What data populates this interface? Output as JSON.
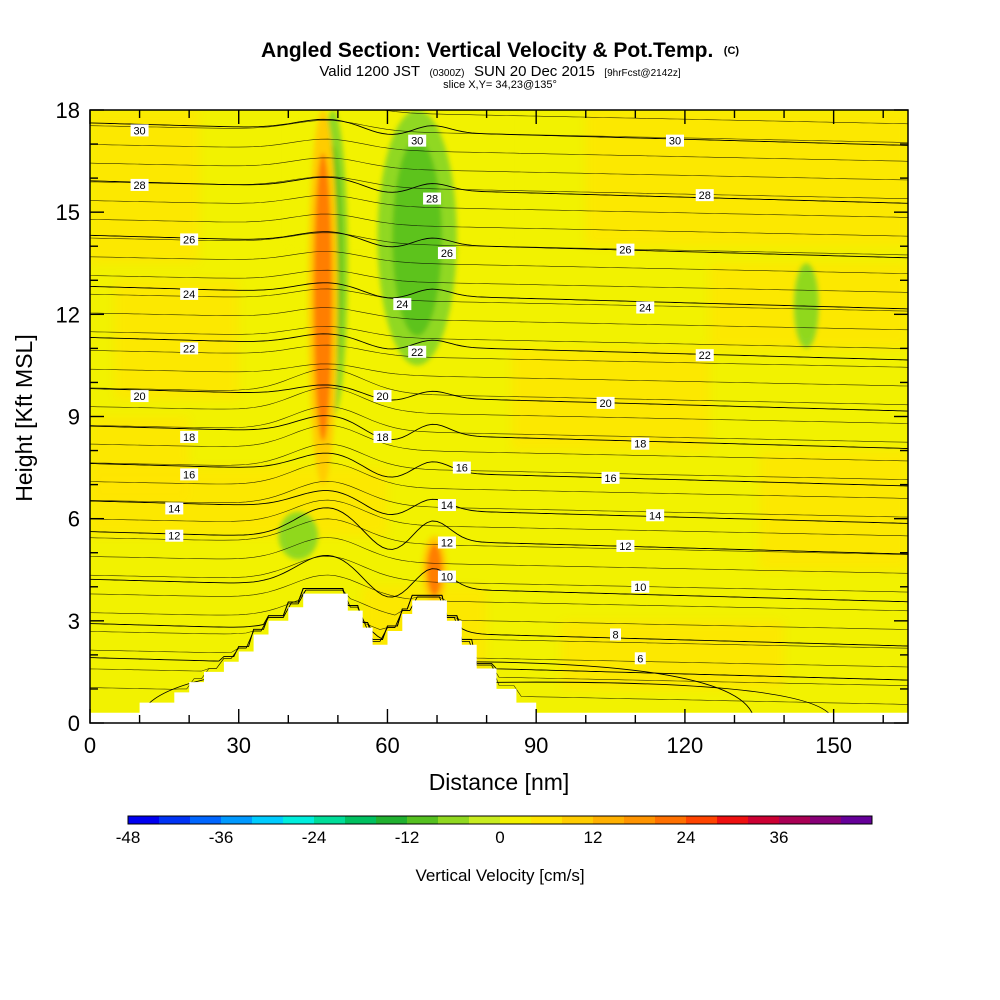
{
  "header": {
    "title": "Angled Section: Vertical Velocity & Pot.Temp.",
    "title_tag": "(C)",
    "valid_prefix": "Valid 1200 JST",
    "valid_utc": "(0300Z)",
    "valid_date": "SUN 20 Dec 2015",
    "forecast": "[9hrFcst@2142z]",
    "slice": "slice X,Y= 34,23@135°"
  },
  "colorbar": {
    "title": "Vertical Velocity [cm/s]",
    "tick_labels": [
      "-48",
      "-36",
      "-24",
      "-12",
      "0",
      "12",
      "24",
      "36"
    ],
    "tick_values": [
      -48,
      -36,
      -24,
      -12,
      0,
      12,
      24,
      36
    ],
    "bins": [
      -48,
      -44,
      -40,
      -36,
      -32,
      -28,
      -24,
      -20,
      -16,
      -12,
      -8,
      -4,
      0,
      4,
      8,
      12,
      16,
      20,
      24,
      28,
      32,
      36,
      40,
      44
    ],
    "colors": [
      "#0000f0",
      "#0033f5",
      "#0066ff",
      "#0099ff",
      "#00ccff",
      "#00eedd",
      "#00dd99",
      "#00c060",
      "#20b030",
      "#55c020",
      "#90d820",
      "#c8ec20",
      "#f2f200",
      "#ffe400",
      "#ffcc00",
      "#ffb000",
      "#ff9400",
      "#ff7000",
      "#ff4400",
      "#ee1010",
      "#cc0033",
      "#aa0055",
      "#880077",
      "#660099"
    ]
  },
  "chart_data": {
    "type": "heatmap",
    "title": "Angled Section: Vertical Velocity & Pot.Temp.",
    "xlabel": "Distance [nm]",
    "ylabel": "Height [Kft MSL]",
    "xlim": [
      0,
      165
    ],
    "ylim": [
      0,
      18
    ],
    "x_ticks": [
      0,
      30,
      60,
      90,
      120,
      150
    ],
    "y_ticks": [
      0,
      3,
      6,
      9,
      12,
      15,
      18
    ],
    "filled_field": "Vertical Velocity [cm/s]",
    "contour_field": "Potential Temperature (C)",
    "contour_levels": [
      6,
      8,
      10,
      12,
      14,
      16,
      18,
      20,
      22,
      24,
      26,
      28,
      30
    ],
    "contour_labels": [
      {
        "text": "30",
        "x": 10,
        "y": 17.4
      },
      {
        "text": "30",
        "x": 66,
        "y": 17.1
      },
      {
        "text": "30",
        "x": 118,
        "y": 17.1
      },
      {
        "text": "28",
        "x": 10,
        "y": 15.8
      },
      {
        "text": "28",
        "x": 69,
        "y": 15.4
      },
      {
        "text": "28",
        "x": 124,
        "y": 15.5
      },
      {
        "text": "26",
        "x": 20,
        "y": 14.2
      },
      {
        "text": "26",
        "x": 72,
        "y": 13.8
      },
      {
        "text": "26",
        "x": 108,
        "y": 13.9
      },
      {
        "text": "24",
        "x": 20,
        "y": 12.6
      },
      {
        "text": "24",
        "x": 63,
        "y": 12.3
      },
      {
        "text": "24",
        "x": 112,
        "y": 12.2
      },
      {
        "text": "22",
        "x": 20,
        "y": 11.0
      },
      {
        "text": "22",
        "x": 66,
        "y": 10.9
      },
      {
        "text": "22",
        "x": 124,
        "y": 10.8
      },
      {
        "text": "20",
        "x": 10,
        "y": 9.6
      },
      {
        "text": "20",
        "x": 59,
        "y": 9.6
      },
      {
        "text": "20",
        "x": 104,
        "y": 9.4
      },
      {
        "text": "18",
        "x": 20,
        "y": 8.4
      },
      {
        "text": "18",
        "x": 59,
        "y": 8.4
      },
      {
        "text": "18",
        "x": 111,
        "y": 8.2
      },
      {
        "text": "16",
        "x": 20,
        "y": 7.3
      },
      {
        "text": "16",
        "x": 75,
        "y": 7.5
      },
      {
        "text": "16",
        "x": 105,
        "y": 7.2
      },
      {
        "text": "14",
        "x": 17,
        "y": 6.3
      },
      {
        "text": "14",
        "x": 72,
        "y": 6.4
      },
      {
        "text": "14",
        "x": 114,
        "y": 6.1
      },
      {
        "text": "12",
        "x": 17,
        "y": 5.5
      },
      {
        "text": "12",
        "x": 72,
        "y": 5.3
      },
      {
        "text": "12",
        "x": 108,
        "y": 5.2
      },
      {
        "text": "10",
        "x": 72,
        "y": 4.3
      },
      {
        "text": "10",
        "x": 111,
        "y": 4.0
      },
      {
        "text": "8",
        "x": 106,
        "y": 2.6
      },
      {
        "text": "6",
        "x": 111,
        "y": 1.9
      }
    ],
    "terrain": {
      "x": [
        0,
        10,
        10,
        17,
        17,
        20,
        20,
        23,
        23,
        27,
        27,
        30,
        30,
        33,
        33,
        36,
        36,
        40,
        40,
        43,
        43,
        47,
        47,
        52,
        52,
        55,
        55,
        57,
        57,
        60,
        60,
        63,
        63,
        65,
        65,
        67,
        67,
        72,
        72,
        75,
        75,
        78,
        78,
        82,
        82,
        86,
        86,
        90,
        90,
        165
      ],
      "height": [
        0.3,
        0.3,
        0.6,
        0.6,
        0.9,
        0.9,
        1.2,
        1.2,
        1.5,
        1.5,
        1.8,
        1.8,
        2.1,
        2.1,
        2.6,
        2.6,
        3.0,
        3.0,
        3.4,
        3.4,
        3.8,
        3.8,
        3.8,
        3.8,
        3.3,
        3.3,
        2.8,
        2.8,
        2.3,
        2.3,
        2.7,
        2.7,
        3.2,
        3.2,
        3.6,
        3.6,
        3.6,
        3.6,
        3.0,
        3.0,
        2.3,
        2.3,
        1.6,
        1.6,
        1.0,
        1.0,
        0.6,
        0.6,
        0.3,
        0.3
      ]
    },
    "features": [
      {
        "kind": "downdraft",
        "x_range": [
          46,
          52
        ],
        "y_range": [
          9,
          18
        ],
        "max_cm_s": -12
      },
      {
        "kind": "updraft",
        "x_range": [
          44,
          50
        ],
        "y_range": [
          7,
          18
        ],
        "max_cm_s": 20
      },
      {
        "kind": "downdraft",
        "x_range": [
          58,
          74
        ],
        "y_range": [
          10.5,
          18
        ],
        "max_cm_s": -12
      },
      {
        "kind": "updraft",
        "x_range": [
          67,
          72
        ],
        "y_range": [
          3.5,
          5.5
        ],
        "max_cm_s": 20
      },
      {
        "kind": "downdraft",
        "x_range": [
          38,
          46
        ],
        "y_range": [
          4.8,
          6.2
        ],
        "max_cm_s": -8
      },
      {
        "kind": "downdraft",
        "x_range": [
          142,
          147
        ],
        "y_range": [
          11,
          13.5
        ],
        "max_cm_s": -8
      }
    ]
  }
}
